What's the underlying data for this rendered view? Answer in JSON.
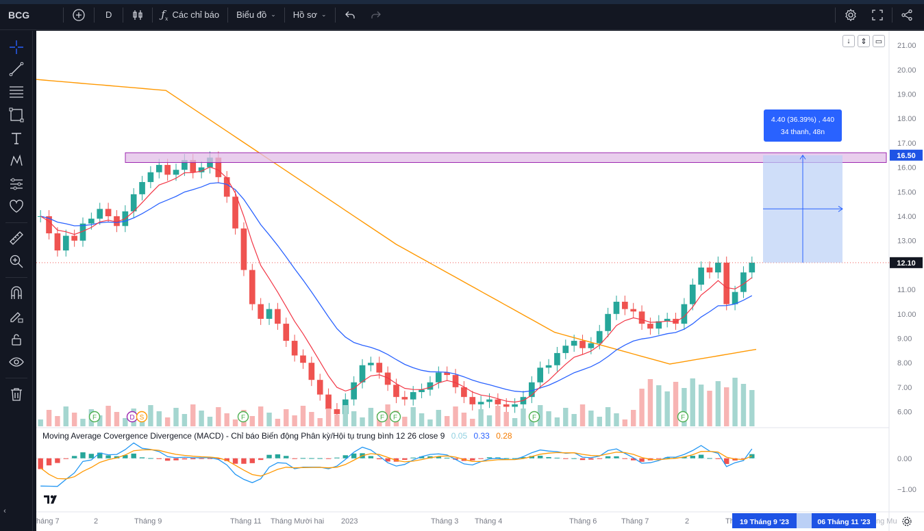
{
  "toolbar": {
    "symbol": "BCG",
    "interval": "D",
    "indicators_label": "Các chỉ báo",
    "chart_layout_label": "Biểu đồ",
    "profile_label": "Hồ sơ"
  },
  "colors": {
    "background": "#ffffff",
    "up": "#26a69a",
    "down": "#ef5350",
    "ma_fast": "#f23645",
    "ma_mid": "#2962ff",
    "ma_slow": "#ff9800",
    "zone_fill": "#e1bee7",
    "zone_border": "#9c27b0",
    "measure_fill": "#bbd0f6",
    "axis_highlight": "#1e53e5"
  },
  "price_axis": {
    "ticks": [
      "21.00",
      "20.00",
      "19.00",
      "18.00",
      "17.00",
      "16.00",
      "15.00",
      "14.00",
      "13.00",
      "12.00",
      "11.00",
      "10.00",
      "9.00",
      "8.00",
      "7.00",
      "6.00"
    ],
    "current_price_label": "12.10",
    "zone_price_label": "16.50"
  },
  "macd_axis": {
    "ticks": [
      "0.00",
      "−1.00"
    ]
  },
  "time_axis": {
    "labels": [
      "háng 7",
      "2",
      "Tháng 9",
      "Tháng 11",
      "Tháng Mười hai",
      "2023",
      "Tháng 3",
      "Tháng 4",
      "Tháng 6",
      "Tháng 7",
      "2",
      "Th"
    ],
    "start_date_label": "19 Tháng 9 '23",
    "end_date_label": "06 Tháng 11 '23",
    "tail_label": "ng Mu"
  },
  "measure": {
    "line1": "4.40 (36.39%) , 440",
    "line2": "34 thanh, 48n"
  },
  "macd_legend": {
    "title": "Moving Average Covergence Divergence (MACD) - Chỉ báo Biến động Phân kỳ/Hội tụ trung bình 12 26 close 9",
    "hist": "0.05",
    "macd": "0.33",
    "signal": "0.28"
  },
  "event_markers": [
    "F",
    "D",
    "S",
    "F",
    "F",
    "F",
    "F",
    "F"
  ],
  "chart_data": {
    "type": "candlestick",
    "price_range": [
      5.4,
      21.2
    ],
    "macd_range": [
      -1.45,
      0.55
    ],
    "series": [
      {
        "name": "Moving Average Covergence Divergence (MACD)",
        "values_last": {
          "histogram": 0.05,
          "macd": 0.33,
          "signal": 0.28
        }
      }
    ],
    "annotations": {
      "resistance_zone": [
        16.2,
        16.6
      ],
      "measure_from": 12.1,
      "measure_to": 16.5,
      "measure_change": "4.40 (36.39%)"
    },
    "candles_close_path": [
      14.0,
      13.3,
      12.6,
      13.2,
      13.0,
      13.7,
      13.9,
      14.3,
      14.0,
      13.6,
      14.2,
      14.9,
      15.4,
      15.8,
      16.1,
      15.7,
      15.9,
      16.3,
      15.8,
      16.0,
      16.4,
      15.6,
      14.8,
      13.5,
      11.8,
      10.4,
      9.8,
      10.2,
      9.6,
      8.9,
      8.3,
      8.0,
      7.3,
      6.7,
      6.1,
      5.9,
      6.5,
      7.2,
      7.9,
      8.0,
      7.6,
      7.1,
      6.6,
      6.5,
      6.8,
      6.9,
      7.2,
      7.6,
      7.5,
      7.0,
      6.6,
      6.3,
      6.4,
      6.5,
      6.3,
      6.2,
      6.3,
      6.6,
      7.2,
      7.8,
      7.9,
      8.4,
      8.7,
      8.9,
      8.6,
      8.8,
      9.3,
      10.0,
      10.5,
      10.2,
      10.1,
      9.6,
      9.4,
      9.7,
      9.8,
      9.6,
      10.4,
      11.2,
      11.9,
      11.7,
      12.1,
      10.4,
      10.9,
      11.7,
      12.1
    ]
  }
}
